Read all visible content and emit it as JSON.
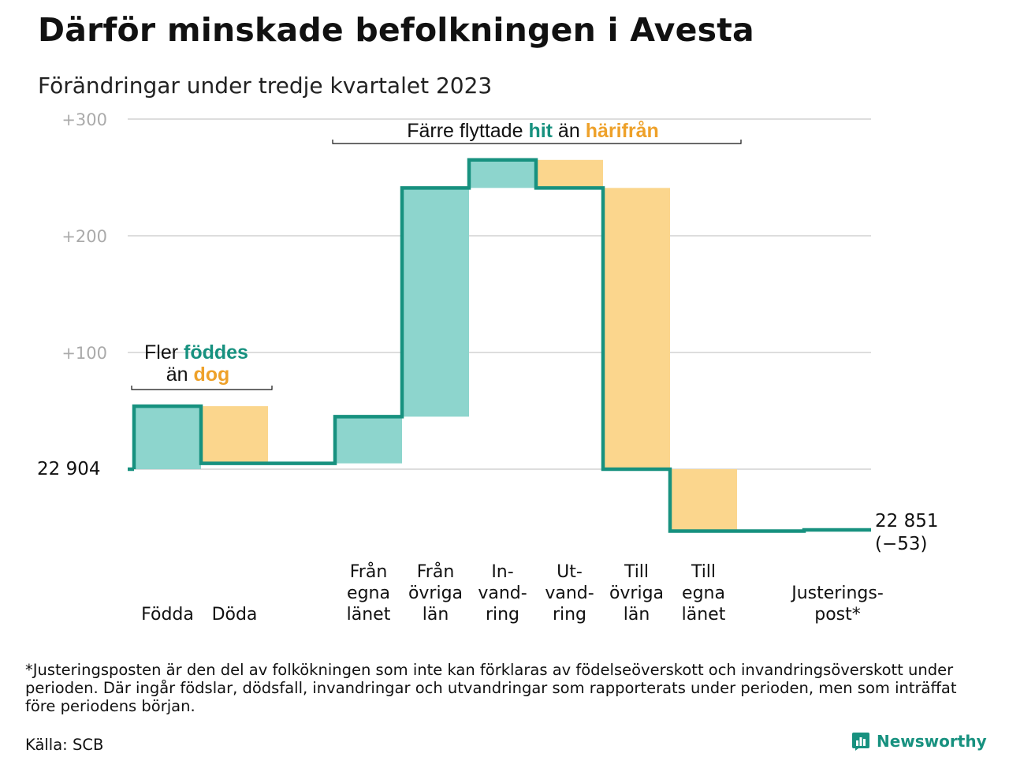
{
  "title": "Därför minskade befolkningen i Avesta",
  "subtitle": "Förändringar under tredje kvartalet 2023",
  "colors": {
    "increase": "#8dd5cd",
    "decrease": "#fbd68d",
    "line": "#17917f",
    "accent_orange": "#eea12a",
    "grid": "#dddddd"
  },
  "chart_data": {
    "type": "waterfall",
    "start_value": 22904,
    "start_label": "22  904",
    "end_value": 22851,
    "end_label_line1": "22 851",
    "end_label_line2": "(−53)",
    "ylim": [
      -65,
      300
    ],
    "y_ticks": [
      {
        "value": 300,
        "label": "+300"
      },
      {
        "value": 200,
        "label": "+200"
      },
      {
        "value": 100,
        "label": "+100"
      }
    ],
    "steps": [
      {
        "label": [
          "Födda"
        ],
        "change": 54
      },
      {
        "label": [
          "Döda"
        ],
        "change": -49
      },
      {
        "label": [],
        "change": 0
      },
      {
        "label": [
          "Från",
          "egna",
          "länet"
        ],
        "change": 40
      },
      {
        "label": [
          "Från",
          "övriga",
          "län"
        ],
        "change": 196
      },
      {
        "label": [
          "In-",
          "vand-",
          "ring"
        ],
        "change": 24
      },
      {
        "label": [
          "Ut-",
          "vand-",
          "ring"
        ],
        "change": -24
      },
      {
        "label": [
          "Till",
          "övriga",
          "län"
        ],
        "change": -241
      },
      {
        "label": [
          "Till",
          "egna",
          "länet"
        ],
        "change": -53
      },
      {
        "label": [],
        "change": 0
      },
      {
        "label": [
          "Justerings-",
          "post*"
        ],
        "change": 1
      }
    ],
    "annotations": [
      {
        "id": "births",
        "line1_prefix": "Fler ",
        "line1_highlight": "föddes",
        "line2_prefix": "än ",
        "line2_highlight": "dog"
      },
      {
        "id": "moves",
        "prefix": "Färre flyttade ",
        "highlight1": "hit",
        "middle": " än ",
        "highlight2": "härifrån"
      }
    ]
  },
  "footnote": "*Justeringsposten är den del av folkökningen som inte kan förklaras av födelseöverskott och invandringsöverskott under perioden. Där ingår födslar, dödsfall, invandringar och utvandringar som rapporterats under perioden, men som inträffat före periodens början.",
  "source": "Källa: SCB",
  "brand": "Newsworthy"
}
